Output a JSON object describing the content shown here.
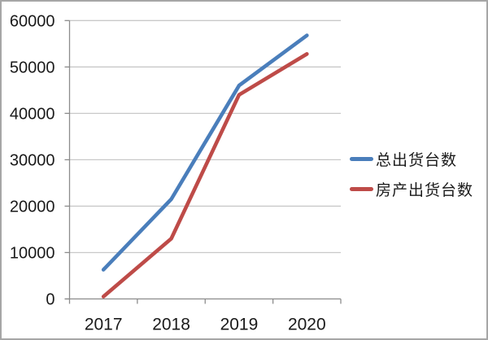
{
  "chart_data": {
    "type": "line",
    "title": "",
    "xlabel": "",
    "ylabel": "",
    "categories": [
      "2017",
      "2018",
      "2019",
      "2020"
    ],
    "series": [
      {
        "name": "总出货台数",
        "color": "#4A7EBB",
        "values": [
          6300,
          21500,
          46000,
          56800
        ]
      },
      {
        "name": "房产出货台数",
        "color": "#BE4B48",
        "values": [
          500,
          13000,
          44000,
          52800
        ]
      }
    ],
    "ylim": [
      0,
      60000
    ],
    "yticks": [
      0,
      10000,
      20000,
      30000,
      40000,
      50000,
      60000
    ],
    "grid": true,
    "legend_position": "right"
  },
  "colors": {
    "grid": "#C9C9C9",
    "axis": "#8C8C8C",
    "text": "#1A1A1A",
    "frame_border": "#A6A6A6",
    "background": "#FFFFFF"
  }
}
